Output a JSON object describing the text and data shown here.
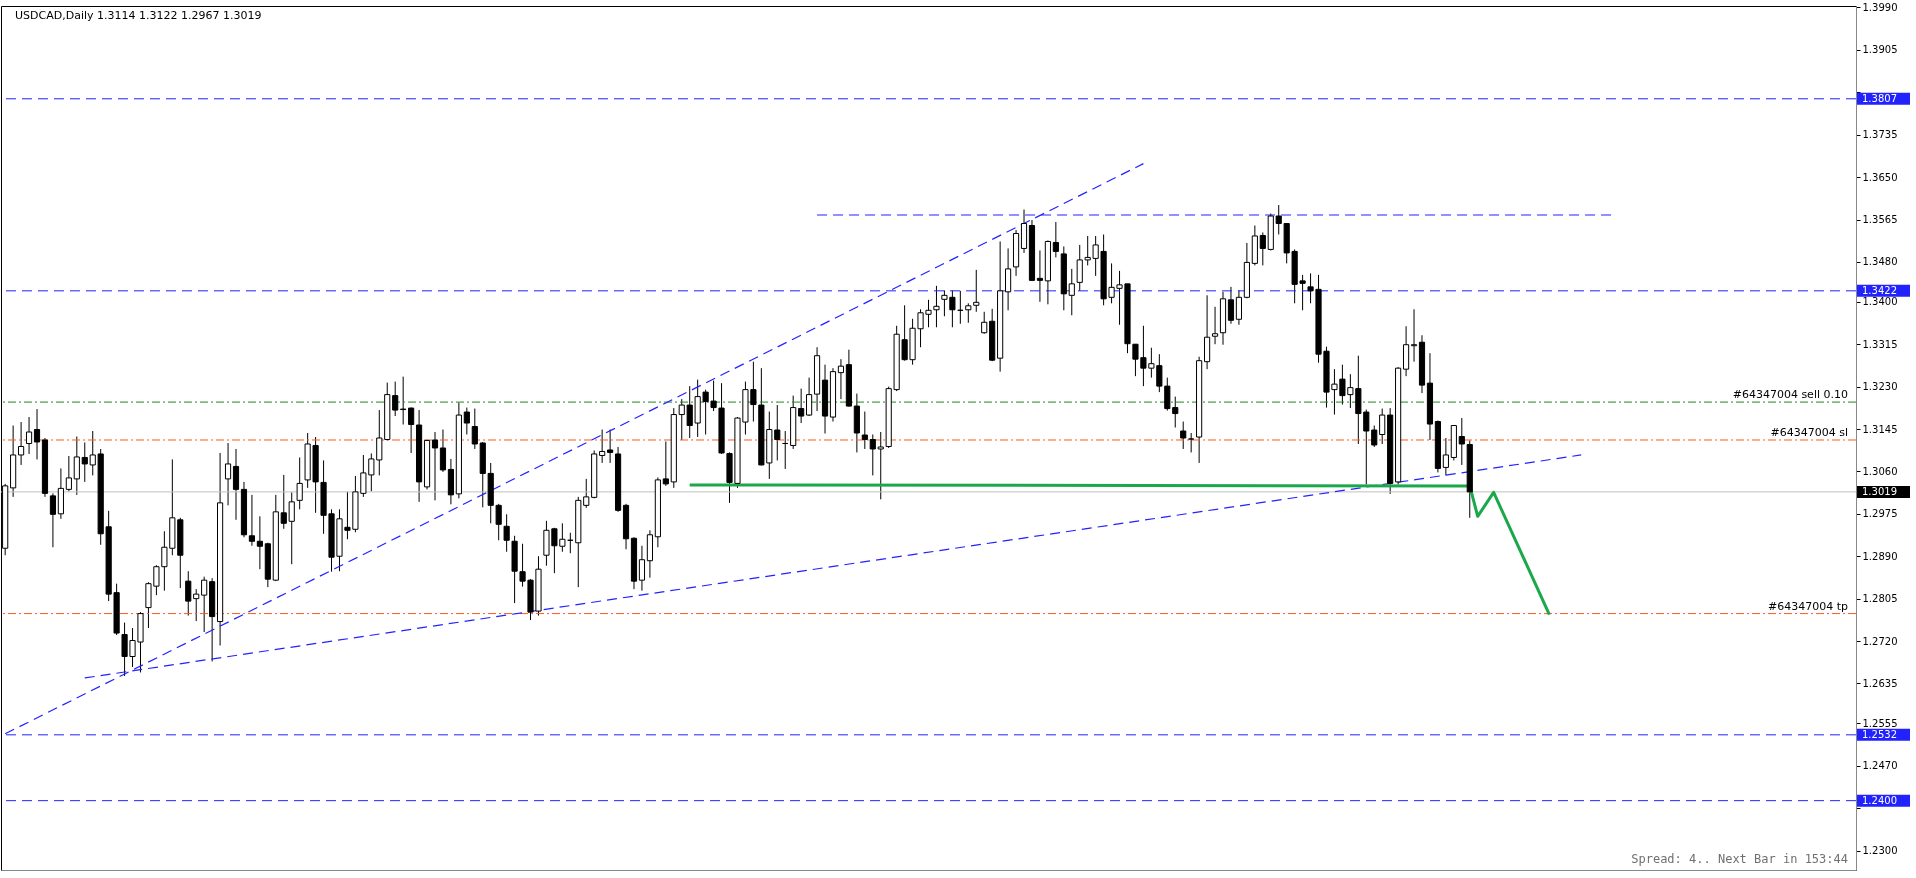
{
  "chart_data": {
    "type": "candlestick",
    "title": "USDCAD,Daily 1.3114 1.3122 1.2967 1.3019",
    "categories": [
      null,
      null,
      null,
      null,
      null,
      null,
      null,
      null,
      null,
      null,
      null,
      null,
      null,
      null,
      null,
      null,
      null,
      null,
      null,
      null,
      null,
      null,
      null,
      null,
      null,
      null,
      null,
      null,
      null,
      null,
      null,
      null,
      null,
      null,
      null,
      null,
      null,
      null,
      null,
      null,
      null,
      null,
      null,
      null,
      null,
      null,
      null,
      null,
      null,
      null,
      null,
      null,
      null,
      null,
      null,
      null,
      null,
      null,
      null,
      null,
      null,
      null,
      null,
      null,
      null,
      null,
      null,
      null,
      null,
      null,
      null,
      null,
      null,
      null,
      null,
      null,
      null,
      null,
      null,
      null,
      null,
      null,
      null,
      null,
      null,
      null,
      null,
      null,
      null,
      null,
      null,
      null,
      null,
      null,
      null,
      null,
      null,
      null,
      null,
      null,
      null,
      null,
      null,
      null,
      null,
      null,
      null,
      null,
      null,
      null,
      null,
      null,
      null,
      null,
      null,
      null,
      null,
      null,
      null,
      null,
      null,
      null,
      null,
      null,
      null,
      null,
      null,
      null,
      null,
      null,
      null,
      null,
      null,
      null,
      null,
      null,
      null,
      null,
      null,
      null,
      null,
      null,
      null,
      null,
      null,
      null,
      null,
      null,
      null,
      null,
      null,
      null,
      null,
      null,
      null,
      null,
      null,
      null,
      null,
      null,
      null,
      null,
      null,
      null,
      null,
      null,
      null,
      null,
      null,
      null,
      null,
      null,
      null,
      null,
      null,
      null,
      null,
      null,
      null,
      null,
      null,
      null,
      null,
      null,
      null,
      null,
      null,
      null,
      null,
      null,
      null,
      null,
      null,
      null,
      null,
      null,
      null,
      null,
      null,
      null,
      null,
      null,
      null,
      null,
      null,
      null,
      null,
      null,
      null,
      null,
      null,
      null,
      null,
      null,
      null,
      null,
      null,
      null,
      null,
      null,
      null,
      null,
      null,
      null,
      null,
      null,
      null,
      null,
      null,
      null,
      null,
      null,
      null
    ],
    "ohlc": [
      [
        1.2906,
        1.3035,
        1.2892,
        1.3031
      ],
      [
        1.3027,
        1.3152,
        1.3009,
        1.3093
      ],
      [
        1.3093,
        1.3159,
        1.3073,
        1.311
      ],
      [
        1.3116,
        1.3169,
        1.3095,
        1.3139
      ],
      [
        1.3144,
        1.3185,
        1.3084,
        1.3119
      ],
      [
        1.3123,
        1.3127,
        1.3009,
        1.3016
      ],
      [
        1.3011,
        1.3016,
        1.2908,
        1.2974
      ],
      [
        1.2975,
        1.3066,
        1.2965,
        1.3026
      ],
      [
        1.3024,
        1.3091,
        1.302,
        1.3047
      ],
      [
        1.3045,
        1.313,
        1.3013,
        1.3089
      ],
      [
        1.3088,
        1.3118,
        1.3039,
        1.3075
      ],
      [
        1.3073,
        1.3141,
        1.3052,
        1.3093
      ],
      [
        1.3095,
        1.3105,
        1.2913,
        1.2935
      ],
      [
        1.2949,
        1.2981,
        1.28,
        1.2814
      ],
      [
        1.2817,
        1.2835,
        1.2732,
        1.2736
      ],
      [
        1.2733,
        1.2757,
        1.265,
        1.2689
      ],
      [
        1.2689,
        1.2746,
        1.2668,
        1.2721
      ],
      [
        1.2718,
        1.2778,
        1.2657,
        1.2775
      ],
      [
        1.2787,
        1.2838,
        1.2746,
        1.2835
      ],
      [
        1.283,
        1.2872,
        1.2812,
        1.2869
      ],
      [
        1.2869,
        1.294,
        1.2821,
        1.2908
      ],
      [
        1.2906,
        1.3084,
        1.2892,
        1.2967
      ],
      [
        1.2963,
        1.2967,
        1.2826,
        1.2892
      ],
      [
        1.284,
        1.286,
        1.2771,
        1.28
      ],
      [
        1.2805,
        1.2824,
        1.276,
        1.2814
      ],
      [
        1.2812,
        1.2849,
        1.2738,
        1.2842
      ],
      [
        1.2839,
        1.2846,
        1.2679,
        1.2769
      ],
      [
        1.2759,
        1.3097,
        1.2711,
        1.2997
      ],
      [
        1.3045,
        1.3117,
        1.2992,
        1.3075
      ],
      [
        1.307,
        1.3105,
        1.2963,
        1.3024
      ],
      [
        1.3024,
        1.3039,
        1.2928,
        1.2933
      ],
      [
        1.2931,
        1.3013,
        1.2911,
        1.292
      ],
      [
        1.292,
        1.297,
        1.2864,
        1.291
      ],
      [
        1.2915,
        1.2917,
        1.2828,
        1.2844
      ],
      [
        1.2842,
        1.3013,
        1.284,
        1.2979
      ],
      [
        1.2977,
        1.3053,
        1.2945,
        1.2956
      ],
      [
        1.296,
        1.3018,
        1.2874,
        1.2999
      ],
      [
        1.3002,
        1.3088,
        1.2984,
        1.3036
      ],
      [
        1.3043,
        1.3137,
        1.3027,
        1.3115
      ],
      [
        1.3112,
        1.3129,
        1.2977,
        1.3039
      ],
      [
        1.3038,
        1.3082,
        1.2935,
        1.2972
      ],
      [
        1.2975,
        1.2984,
        1.2859,
        1.2888
      ],
      [
        1.289,
        1.2984,
        1.286,
        1.2965
      ],
      [
        1.2948,
        1.3019,
        1.2924,
        1.2942
      ],
      [
        1.2944,
        1.3051,
        1.2938,
        1.3019
      ],
      [
        1.3016,
        1.3093,
        1.3009,
        1.3057
      ],
      [
        1.3053,
        1.3096,
        1.302,
        1.3085
      ],
      [
        1.3083,
        1.3183,
        1.3052,
        1.3127
      ],
      [
        1.3124,
        1.3238,
        1.3122,
        1.3214
      ],
      [
        1.3212,
        1.324,
        1.3171,
        1.3183
      ],
      [
        1.3185,
        1.325,
        1.3154,
        1.3184
      ],
      [
        1.3187,
        1.3188,
        1.3097,
        1.3154
      ],
      [
        1.3153,
        1.3183,
        1.2999,
        1.3039
      ],
      [
        1.3029,
        1.3124,
        1.3024,
        1.3122
      ],
      [
        1.3123,
        1.3139,
        1.3002,
        1.3107
      ],
      [
        1.3107,
        1.3144,
        1.3059,
        1.3063
      ],
      [
        1.3064,
        1.3085,
        1.2994,
        1.3013
      ],
      [
        1.3015,
        1.3198,
        1.3006,
        1.3173
      ],
      [
        1.3179,
        1.3188,
        1.3134,
        1.3157
      ],
      [
        1.315,
        1.3186,
        1.3105,
        1.3115
      ],
      [
        1.3117,
        1.3119,
        1.2988,
        1.3056
      ],
      [
        1.3056,
        1.3077,
        1.2956,
        1.2992
      ],
      [
        1.2992,
        1.2995,
        1.2922,
        1.2954
      ],
      [
        1.295,
        1.2974,
        1.2899,
        1.2922
      ],
      [
        1.292,
        1.2931,
        1.2796,
        1.286
      ],
      [
        1.2859,
        1.2915,
        1.2829,
        1.284
      ],
      [
        1.2842,
        1.2844,
        1.2762,
        1.2778
      ],
      [
        1.278,
        1.289,
        1.2771,
        1.2864
      ],
      [
        1.2892,
        1.2961,
        1.2871,
        1.2942
      ],
      [
        1.2945,
        1.2947,
        1.2856,
        1.2911
      ],
      [
        1.291,
        1.2956,
        1.2899,
        1.2924
      ],
      [
        1.2922,
        1.2937,
        1.2896,
        1.2922
      ],
      [
        1.2917,
        1.3009,
        1.2828,
        1.3002
      ],
      [
        1.2992,
        1.3045,
        1.2987,
        1.3009
      ],
      [
        1.3008,
        1.3102,
        1.3006,
        1.3095
      ],
      [
        1.3092,
        1.3144,
        1.3077,
        1.31
      ],
      [
        1.3103,
        1.3144,
        1.3077,
        1.3098
      ],
      [
        1.3095,
        1.3109,
        1.2979,
        1.2982
      ],
      [
        1.2992,
        1.2995,
        1.2904,
        1.2925
      ],
      [
        1.2926,
        1.2928,
        1.2824,
        1.284
      ],
      [
        1.2842,
        1.2911,
        1.2821,
        1.2883
      ],
      [
        1.2881,
        1.2942,
        1.2847,
        1.2933
      ],
      [
        1.2929,
        1.3048,
        1.2908,
        1.3043
      ],
      [
        1.3045,
        1.312,
        1.3031,
        1.3035
      ],
      [
        1.3039,
        1.3187,
        1.3027,
        1.3174
      ],
      [
        1.3174,
        1.3205,
        1.3123,
        1.3193
      ],
      [
        1.3193,
        1.3231,
        1.3127,
        1.3152
      ],
      [
        1.3157,
        1.3244,
        1.3129,
        1.321
      ],
      [
        1.3219,
        1.3224,
        1.3134,
        1.32
      ],
      [
        1.3201,
        1.3242,
        1.3181,
        1.3188
      ],
      [
        1.3187,
        1.3237,
        1.3095,
        1.3097
      ],
      [
        1.3096,
        1.3098,
        1.2997,
        1.3038
      ],
      [
        1.3036,
        1.3169,
        1.3027,
        1.3167
      ],
      [
        1.3159,
        1.324,
        1.3134,
        1.3224
      ],
      [
        1.3224,
        1.328,
        1.316,
        1.3194
      ],
      [
        1.3193,
        1.3267,
        1.3072,
        1.3073
      ],
      [
        1.3077,
        1.318,
        1.3045,
        1.3144
      ],
      [
        1.3143,
        1.3193,
        1.3082,
        1.3124
      ],
      [
        1.3116,
        1.3141,
        1.3065,
        1.3116
      ],
      [
        1.3112,
        1.3212,
        1.3105,
        1.3188
      ],
      [
        1.3186,
        1.3226,
        1.3157,
        1.3171
      ],
      [
        1.3173,
        1.3248,
        1.3171,
        1.3214
      ],
      [
        1.3215,
        1.3309,
        1.3181,
        1.3292
      ],
      [
        1.3243,
        1.3274,
        1.3136,
        1.3171
      ],
      [
        1.3169,
        1.3267,
        1.316,
        1.326
      ],
      [
        1.3258,
        1.3285,
        1.3205,
        1.3271
      ],
      [
        1.3274,
        1.3304,
        1.319,
        1.3191
      ],
      [
        1.3191,
        1.3216,
        1.3098,
        1.3137
      ],
      [
        1.3133,
        1.318,
        1.3105,
        1.3124
      ],
      [
        1.3124,
        1.3134,
        1.3052,
        1.3105
      ],
      [
        1.3105,
        1.3139,
        1.3004,
        1.3109
      ],
      [
        1.311,
        1.323,
        1.3107,
        1.3226
      ],
      [
        1.3224,
        1.3352,
        1.3221,
        1.3335
      ],
      [
        1.3324,
        1.3393,
        1.3282,
        1.3284
      ],
      [
        1.3284,
        1.3366,
        1.3274,
        1.3347
      ],
      [
        1.3346,
        1.3385,
        1.3309,
        1.3378
      ],
      [
        1.3375,
        1.3404,
        1.3349,
        1.3383
      ],
      [
        1.3384,
        1.3432,
        1.3349,
        1.3391
      ],
      [
        1.3405,
        1.3423,
        1.3371,
        1.3413
      ],
      [
        1.3409,
        1.3423,
        1.3349,
        1.3384
      ],
      [
        1.3383,
        1.3422,
        1.3356,
        1.3383
      ],
      [
        1.3384,
        1.3397,
        1.3358,
        1.3392
      ],
      [
        1.3393,
        1.3464,
        1.338,
        1.3399
      ],
      [
        1.3338,
        1.338,
        1.3336,
        1.3359
      ],
      [
        1.3361,
        1.3386,
        1.3281,
        1.3283
      ],
      [
        1.3287,
        1.3521,
        1.326,
        1.3422
      ],
      [
        1.342,
        1.3507,
        1.3383,
        1.3466
      ],
      [
        1.347,
        1.3544,
        1.3452,
        1.3537
      ],
      [
        1.3507,
        1.3585,
        1.3498,
        1.3557
      ],
      [
        1.3553,
        1.3564,
        1.3442,
        1.3443
      ],
      [
        1.3447,
        1.3503,
        1.34,
        1.3443
      ],
      [
        1.3442,
        1.3523,
        1.3395,
        1.3521
      ],
      [
        1.3519,
        1.356,
        1.3489,
        1.3501
      ],
      [
        1.3496,
        1.3511,
        1.3383,
        1.3416
      ],
      [
        1.3413,
        1.3466,
        1.3373,
        1.3436
      ],
      [
        1.3439,
        1.3514,
        1.3422,
        1.3484
      ],
      [
        1.3484,
        1.3532,
        1.3473,
        1.3489
      ],
      [
        1.3487,
        1.3532,
        1.3452,
        1.3514
      ],
      [
        1.3501,
        1.3535,
        1.3393,
        1.3406
      ],
      [
        1.3409,
        1.3477,
        1.3397,
        1.3429
      ],
      [
        1.3427,
        1.3462,
        1.3354,
        1.3434
      ],
      [
        1.3436,
        1.3436,
        1.3297,
        1.3316
      ],
      [
        1.3315,
        1.3315,
        1.3251,
        1.3285
      ],
      [
        1.3288,
        1.3352,
        1.3231,
        1.3267
      ],
      [
        1.3267,
        1.3308,
        1.3248,
        1.3276
      ],
      [
        1.3272,
        1.3295,
        1.3219,
        1.3231
      ],
      [
        1.3231,
        1.3248,
        1.3182,
        1.3186
      ],
      [
        1.3188,
        1.321,
        1.3148,
        1.3176
      ],
      [
        1.3141,
        1.316,
        1.3105,
        1.3127
      ],
      [
        1.3125,
        1.3137,
        1.3098,
        1.3125
      ],
      [
        1.3129,
        1.329,
        1.3077,
        1.3282
      ],
      [
        1.328,
        1.3413,
        1.3265,
        1.3329
      ],
      [
        1.3331,
        1.339,
        1.3315,
        1.3336
      ],
      [
        1.3338,
        1.342,
        1.3314,
        1.3406
      ],
      [
        1.3404,
        1.343,
        1.3356,
        1.3363
      ],
      [
        1.3365,
        1.3423,
        1.3354,
        1.3409
      ],
      [
        1.3409,
        1.3518,
        1.3407,
        1.3479
      ],
      [
        1.3477,
        1.3553,
        1.3473,
        1.3532
      ],
      [
        1.3533,
        1.3539,
        1.3473,
        1.3507
      ],
      [
        1.3505,
        1.3577,
        1.3503,
        1.3572
      ],
      [
        1.3572,
        1.3594,
        1.3535,
        1.3557
      ],
      [
        1.3557,
        1.3558,
        1.3477,
        1.3498
      ],
      [
        1.3501,
        1.3505,
        1.3397,
        1.3435
      ],
      [
        1.3442,
        1.3454,
        1.3383,
        1.3437
      ],
      [
        1.343,
        1.3457,
        1.3397,
        1.3422
      ],
      [
        1.3425,
        1.3454,
        1.3278,
        1.3295
      ],
      [
        1.3301,
        1.331,
        1.3188,
        1.3219
      ],
      [
        1.3224,
        1.3265,
        1.3174,
        1.3235
      ],
      [
        1.3245,
        1.3274,
        1.3194,
        1.3212
      ],
      [
        1.3214,
        1.3255,
        1.3187,
        1.3228
      ],
      [
        1.3226,
        1.3292,
        1.3115,
        1.3176
      ],
      [
        1.3179,
        1.3184,
        1.3034,
        1.3141
      ],
      [
        1.3143,
        1.3152,
        1.3109,
        1.3113
      ],
      [
        1.3134,
        1.3186,
        1.3115,
        1.3173
      ],
      [
        1.3173,
        1.3187,
        1.3015,
        1.3036
      ],
      [
        1.3039,
        1.3269,
        1.3034,
        1.3267
      ],
      [
        1.3265,
        1.3351,
        1.3251,
        1.3314
      ],
      [
        1.3312,
        1.3385,
        1.328,
        1.3314
      ],
      [
        1.3319,
        1.3333,
        1.3217,
        1.3233
      ],
      [
        1.3237,
        1.3297,
        1.3123,
        1.3155
      ],
      [
        1.316,
        1.3162,
        1.3058,
        1.3066
      ],
      [
        1.3068,
        1.3127,
        1.3052,
        1.3093
      ],
      [
        1.3088,
        1.3153,
        1.3082,
        1.3152
      ],
      [
        1.313,
        1.3167,
        1.3073,
        1.3115
      ],
      [
        1.3114,
        1.3122,
        1.2967,
        1.3019
      ],
      null,
      null,
      null,
      null,
      null,
      null,
      null,
      null,
      null,
      null,
      null,
      null,
      null,
      null,
      null,
      null,
      null,
      null,
      null,
      null,
      null,
      null,
      null,
      null,
      null,
      null,
      null,
      null,
      null,
      null,
      null,
      null,
      null,
      null,
      null,
      null,
      null,
      null,
      null,
      null,
      null,
      null,
      null,
      null,
      null,
      null,
      null,
      null
    ],
    "series": [
      {
        "type": "line",
        "color": "#2222ff",
        "line_style": "dashed",
        "values": [
          1.2534,
          null,
          null,
          null,
          null,
          null,
          null,
          null,
          null,
          null,
          null,
          null,
          null,
          null,
          null,
          null,
          null,
          null,
          null,
          null,
          null,
          null,
          null,
          null,
          null,
          null,
          null,
          null,
          null,
          null,
          null,
          null,
          null,
          null,
          null,
          null,
          null,
          null,
          null,
          null,
          null,
          null,
          null,
          null,
          null,
          null,
          null,
          null,
          null,
          null,
          null,
          null,
          null,
          null,
          null,
          null,
          null,
          null,
          null,
          null,
          null,
          null,
          null,
          null,
          null,
          null,
          null,
          null,
          null,
          null,
          null,
          null,
          null,
          null,
          null,
          null,
          null,
          null,
          null,
          null,
          null,
          null,
          null,
          null,
          null,
          null,
          null,
          null,
          null,
          null,
          null,
          null,
          null,
          null,
          null,
          null,
          null,
          null,
          null,
          null,
          null,
          null,
          null,
          null,
          null,
          null,
          null,
          null,
          null,
          null,
          null,
          null,
          null,
          null,
          null,
          null,
          null,
          null,
          null,
          null,
          null,
          null,
          null,
          null,
          null,
          null,
          null,
          null,
          null,
          null,
          null,
          null,
          null,
          null,
          null,
          null,
          null,
          null,
          null,
          null,
          null,
          null,
          null,
          1.3677,
          null,
          null,
          null,
          null,
          null,
          null,
          null,
          null,
          null,
          null,
          null,
          null,
          null,
          null,
          null,
          null,
          null,
          null,
          null,
          null,
          null,
          null,
          null,
          null,
          null,
          null,
          null,
          null,
          null,
          null,
          null,
          null,
          null,
          null,
          null,
          null,
          null,
          null,
          null,
          null,
          null,
          null,
          null,
          null,
          null,
          null,
          null,
          null,
          null,
          null,
          null,
          null,
          null,
          null,
          null,
          null,
          null,
          null,
          null,
          null,
          null,
          null,
          null,
          null,
          null,
          null,
          null,
          null,
          null,
          null,
          null,
          null,
          null,
          null,
          null,
          null,
          null,
          null,
          null,
          null,
          null,
          null,
          null,
          null,
          null,
          null,
          null,
          null,
          null
        ]
      },
      {
        "type": "line",
        "color": "#2222ff",
        "line_style": "dashed",
        "values": [
          null,
          null,
          null,
          null,
          null,
          null,
          null,
          null,
          null,
          null,
          1.2646,
          null,
          null,
          null,
          null,
          null,
          null,
          null,
          null,
          null,
          null,
          null,
          null,
          null,
          null,
          null,
          null,
          null,
          null,
          null,
          null,
          null,
          null,
          null,
          null,
          null,
          null,
          null,
          null,
          null,
          null,
          null,
          null,
          null,
          null,
          null,
          null,
          null,
          null,
          null,
          null,
          null,
          null,
          null,
          null,
          null,
          null,
          null,
          null,
          null,
          null,
          null,
          null,
          null,
          null,
          null,
          null,
          null,
          null,
          null,
          null,
          null,
          null,
          null,
          null,
          null,
          null,
          null,
          null,
          null,
          null,
          null,
          null,
          null,
          null,
          null,
          null,
          null,
          null,
          null,
          null,
          null,
          null,
          null,
          null,
          null,
          null,
          null,
          null,
          null,
          null,
          null,
          null,
          null,
          null,
          null,
          null,
          null,
          null,
          null,
          null,
          null,
          null,
          null,
          null,
          null,
          null,
          null,
          null,
          null,
          null,
          null,
          null,
          null,
          null,
          null,
          null,
          null,
          null,
          null,
          null,
          null,
          null,
          null,
          null,
          null,
          null,
          null,
          null,
          null,
          null,
          null,
          null,
          null,
          null,
          null,
          null,
          null,
          null,
          null,
          null,
          null,
          null,
          null,
          null,
          null,
          null,
          null,
          null,
          null,
          null,
          null,
          null,
          null,
          null,
          null,
          null,
          null,
          null,
          null,
          null,
          null,
          null,
          null,
          null,
          null,
          null,
          null,
          null,
          null,
          null,
          null,
          null,
          null,
          null,
          null,
          null,
          null,
          null,
          null,
          null,
          null,
          null,
          null,
          null,
          null,
          null,
          null,
          1.3093,
          null,
          null,
          null,
          null,
          null,
          null,
          null,
          null,
          null,
          null,
          null,
          null,
          null,
          null,
          null,
          null,
          null,
          null,
          null,
          null,
          null,
          null,
          null,
          null,
          null,
          null,
          null,
          null,
          null,
          null,
          null,
          null,
          null,
          null
        ]
      },
      {
        "type": "line",
        "color": "#2222ff",
        "line_style": "dashed",
        "values": [
          null,
          null,
          null,
          null,
          null,
          null,
          null,
          null,
          null,
          null,
          null,
          null,
          null,
          null,
          null,
          null,
          null,
          null,
          null,
          null,
          null,
          null,
          null,
          null,
          null,
          null,
          null,
          null,
          null,
          null,
          null,
          null,
          null,
          null,
          null,
          null,
          null,
          null,
          null,
          null,
          null,
          null,
          null,
          null,
          null,
          null,
          null,
          null,
          null,
          null,
          null,
          null,
          null,
          null,
          null,
          null,
          null,
          null,
          null,
          null,
          null,
          null,
          null,
          null,
          null,
          null,
          null,
          null,
          null,
          null,
          null,
          null,
          null,
          null,
          null,
          null,
          null,
          null,
          null,
          null,
          null,
          null,
          null,
          null,
          null,
          null,
          null,
          null,
          null,
          null,
          null,
          null,
          null,
          null,
          null,
          null,
          null,
          null,
          null,
          null,
          null,
          null,
          1.3574,
          null,
          null,
          null,
          null,
          null,
          null,
          null,
          null,
          null,
          null,
          null,
          null,
          null,
          null,
          null,
          null,
          null,
          null,
          null,
          null,
          null,
          null,
          null,
          null,
          null,
          null,
          null,
          null,
          null,
          null,
          null,
          null,
          null,
          null,
          null,
          null,
          null,
          null,
          null,
          null,
          null,
          null,
          null,
          null,
          null,
          null,
          null,
          null,
          null,
          null,
          null,
          null,
          null,
          null,
          null,
          null,
          null,
          null,
          null,
          null,
          null,
          null,
          null,
          null,
          null,
          null,
          null,
          null,
          null,
          null,
          null,
          null,
          null,
          null,
          null,
          null,
          null,
          null,
          null,
          null,
          null,
          null,
          null,
          null,
          null,
          null,
          null,
          null,
          null,
          null,
          null,
          null,
          null,
          null,
          null,
          null,
          null,
          null,
          null,
          1.3574,
          null,
          null,
          null,
          null,
          null,
          null,
          null,
          null,
          null,
          null,
          null,
          null,
          null,
          null,
          null,
          null,
          null,
          null,
          null,
          null,
          null,
          null,
          null,
          null,
          null,
          null,
          null,
          null,
          null,
          null
        ]
      },
      {
        "type": "line",
        "color": "#1aa84a",
        "line_style": "solid",
        "values": [
          null,
          null,
          null,
          null,
          null,
          null,
          null,
          null,
          null,
          null,
          null,
          null,
          null,
          null,
          null,
          null,
          null,
          null,
          null,
          null,
          null,
          null,
          null,
          null,
          null,
          null,
          null,
          null,
          null,
          null,
          null,
          null,
          null,
          null,
          null,
          null,
          null,
          null,
          null,
          null,
          null,
          null,
          null,
          null,
          null,
          null,
          null,
          null,
          null,
          null,
          null,
          null,
          null,
          null,
          null,
          null,
          null,
          null,
          null,
          null,
          null,
          null,
          null,
          null,
          null,
          null,
          null,
          null,
          null,
          null,
          null,
          null,
          null,
          null,
          null,
          null,
          null,
          null,
          null,
          null,
          null,
          null,
          null,
          null,
          null,
          null,
          1.3033,
          null,
          null,
          null,
          null,
          null,
          null,
          null,
          null,
          null,
          null,
          null,
          null,
          null,
          null,
          null,
          null,
          null,
          null,
          null,
          null,
          null,
          null,
          null,
          null,
          null,
          null,
          null,
          null,
          null,
          null,
          null,
          null,
          null,
          null,
          null,
          null,
          null,
          null,
          null,
          null,
          null,
          null,
          null,
          null,
          null,
          null,
          null,
          null,
          null,
          null,
          null,
          null,
          null,
          null,
          null,
          null,
          null,
          null,
          null,
          null,
          null,
          null,
          null,
          null,
          null,
          null,
          null,
          null,
          null,
          null,
          null,
          null,
          null,
          null,
          null,
          null,
          null,
          null,
          null,
          null,
          null,
          null,
          null,
          null,
          null,
          null,
          null,
          null,
          null,
          null,
          null,
          null,
          null,
          null,
          null,
          null,
          null,
          1.3031,
          1.297,
          null,
          1.3018,
          null,
          null,
          null,
          null,
          null,
          null,
          1.2773,
          null,
          null,
          null,
          null,
          null,
          null,
          null,
          null,
          null,
          null,
          null,
          null,
          null,
          null,
          null,
          null,
          null,
          null,
          null,
          null,
          null,
          null,
          null,
          null,
          null,
          null,
          null,
          null,
          null,
          null,
          null,
          null,
          null,
          null,
          null,
          null,
          null,
          null
        ]
      }
    ],
    "ylim": [
      1.2261,
      1.3993
    ],
    "yticks": [
      {
        "value": 1.399,
        "label": "1.3990"
      },
      1.3905,
      {
        "value": 1.382,
        "label": null
      },
      1.3735,
      {
        "value": 1.365,
        "label": "1.3650"
      },
      1.3565,
      {
        "value": 1.348,
        "label": "1.3480"
      },
      {
        "value": 1.34,
        "label": "1.3400"
      },
      1.3315,
      {
        "value": 1.323,
        "label": "1.3230"
      },
      1.3145,
      {
        "value": 1.306,
        "label": "1.3060"
      },
      1.2975,
      {
        "value": 1.289,
        "label": "1.2890"
      },
      1.2805,
      {
        "value": 1.272,
        "label": "1.2720"
      },
      1.2635,
      1.2555,
      {
        "value": 1.247,
        "label": "1.2470"
      },
      {
        "value": 1.2385,
        "label": null
      },
      {
        "value": 1.23,
        "label": "1.2300"
      }
    ],
    "ref_lines": [
      {
        "axis": "y",
        "value": 1.3807,
        "label": "1.3807",
        "color": "#2222ff",
        "line_style": "dashed"
      },
      {
        "axis": "y",
        "value": 1.3422,
        "label": "1.3422",
        "color": "#2222ff",
        "line_style": "dashed"
      },
      {
        "axis": "y",
        "value": 1.2532,
        "label": "1.2532",
        "color": "#2222ff",
        "line_style": "dashed"
      },
      {
        "axis": "y",
        "value": 1.24,
        "label": "1.2400",
        "color": "#2222ff",
        "line_style": "dashed"
      },
      {
        "axis": "y",
        "value": 1.3019,
        "label": "1.3019",
        "color": "#c0c0c0",
        "line_style": "solid"
      },
      {
        "axis": "y",
        "value": 1.3199,
        "label": "#64347004 sell 0.10",
        "color": "#208a20",
        "line_style": "dotted"
      },
      {
        "axis": "y",
        "value": 1.3123,
        "label": "#64347004 sl",
        "color": "#ff5a1e",
        "line_style": "dotted"
      },
      {
        "axis": "y",
        "value": 1.2775,
        "label": "#64347004 tp",
        "color": "#ff5a1e",
        "line_style": "dotted"
      }
    ],
    "annotations": [
      "Spread: 4.. Next Bar in 153:44"
    ],
    "tick_labels": "y"
  }
}
